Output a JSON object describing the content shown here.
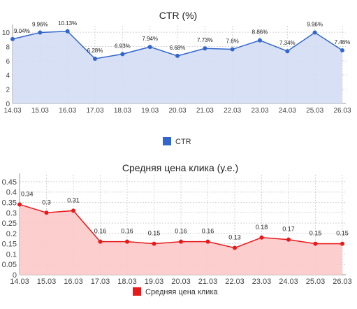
{
  "chart_data": [
    {
      "type": "area",
      "title": "CTR (%)",
      "categories": [
        "14.03",
        "15.03",
        "16.03",
        "17.03",
        "18.03",
        "19.03",
        "20.03",
        "21.03",
        "22.03",
        "23.03",
        "24.03",
        "25.03",
        "26.03"
      ],
      "y_ticks": [
        "0",
        "2",
        "4",
        "6",
        "8",
        "10"
      ],
      "ylim": [
        0,
        10.5
      ],
      "grid": true,
      "legend_position": "bottom",
      "series": [
        {
          "name": "CTR",
          "color": "#3366cc",
          "fill": "#d3ddf3",
          "values": [
            9.04,
            9.96,
            10.13,
            6.28,
            6.93,
            7.94,
            6.68,
            7.73,
            7.6,
            8.86,
            7.34,
            9.96,
            7.46
          ],
          "labels": [
            "9.04%",
            "9.96%",
            "10.13%",
            "6.28%",
            "6.93%",
            "7.94%",
            "6.68%",
            "7.73%",
            "7.6%",
            "8.86%",
            "7.34%",
            "9.96%",
            "7.46%"
          ]
        }
      ]
    },
    {
      "type": "area",
      "title": "Средняя цена клика (у.е.)",
      "categories": [
        "14.03",
        "15.03",
        "16.03",
        "17.03",
        "18.03",
        "19.03",
        "20.03",
        "21.03",
        "22.03",
        "23.03",
        "24.03",
        "25.03",
        "26.03"
      ],
      "y_ticks": [
        "0",
        "0.05",
        "0.1",
        "0.15",
        "0.2",
        "0.25",
        "0.3",
        "0.35",
        "0.4",
        "0.45"
      ],
      "ylim": [
        0,
        0.47
      ],
      "grid": true,
      "legend_position": "bottom",
      "series": [
        {
          "name": "Средняя цена клика",
          "color": "#e8191a",
          "fill": "#fdc9c9",
          "values": [
            0.34,
            0.3,
            0.31,
            0.16,
            0.16,
            0.15,
            0.16,
            0.16,
            0.13,
            0.18,
            0.17,
            0.15,
            0.15
          ],
          "labels": [
            "0.34",
            "0.3",
            "0.31",
            "0.16",
            "0.16",
            "0.15",
            "0.16",
            "0.16",
            "0.13",
            "0.18",
            "0.17",
            "0.15",
            "0.15"
          ]
        }
      ]
    }
  ]
}
